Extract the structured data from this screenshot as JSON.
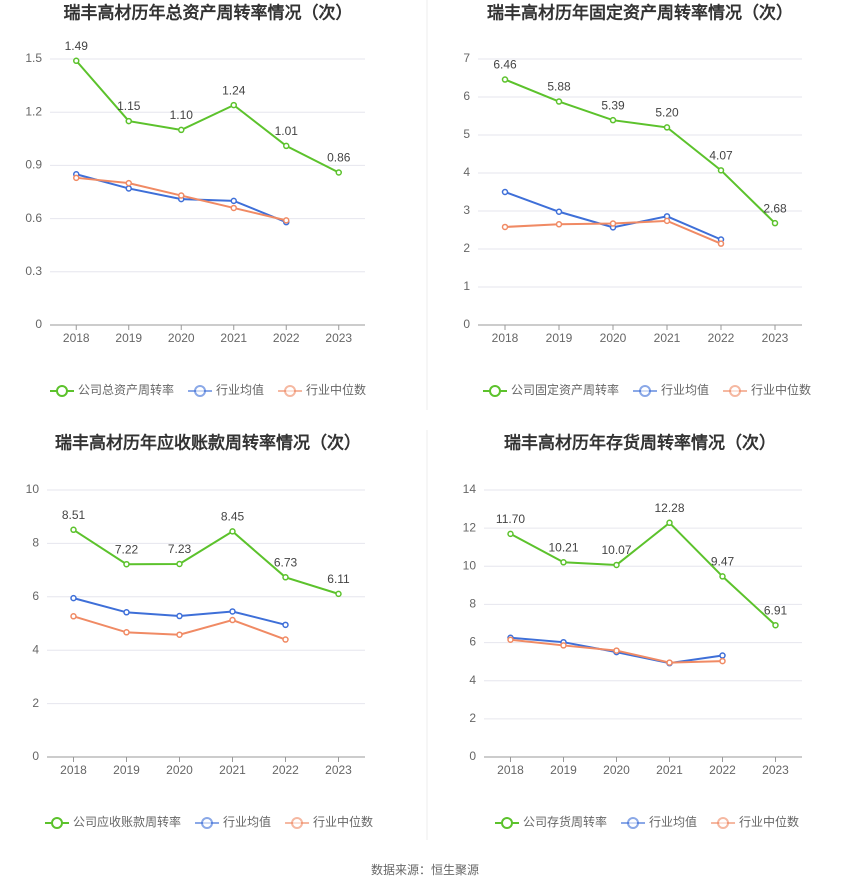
{
  "chart_data": [
    {
      "type": "line",
      "title": "瑞丰高材历年总资产周转率情况（次）",
      "categories": [
        "2018",
        "2019",
        "2020",
        "2021",
        "2022",
        "2023"
      ],
      "ylim": [
        0,
        1.5
      ],
      "yticks": [
        0,
        0.3,
        0.6,
        0.9,
        1.2,
        1.5
      ],
      "grid": true,
      "series": [
        {
          "name": "公司总资产周转率",
          "color": "#5cc22c",
          "values": [
            1.49,
            1.15,
            1.1,
            1.24,
            1.01,
            0.86
          ],
          "value_labels": [
            "1.49",
            "1.15",
            "1.10",
            "1.24",
            "1.01",
            "0.86"
          ]
        },
        {
          "name": "行业均值",
          "color": "#3e6fd8",
          "values": [
            0.85,
            0.77,
            0.71,
            0.7,
            0.58,
            null
          ]
        },
        {
          "name": "行业中位数",
          "color": "#f08a64",
          "values": [
            0.83,
            0.8,
            0.73,
            0.66,
            0.59,
            null
          ]
        }
      ]
    },
    {
      "type": "line",
      "title": "瑞丰高材历年固定资产周转率情况（次）",
      "categories": [
        "2018",
        "2019",
        "2020",
        "2021",
        "2022",
        "2023"
      ],
      "ylim": [
        0,
        7
      ],
      "yticks": [
        0,
        1,
        2,
        3,
        4,
        5,
        6,
        7
      ],
      "grid": true,
      "series": [
        {
          "name": "公司固定资产周转率",
          "color": "#5cc22c",
          "values": [
            6.46,
            5.88,
            5.39,
            5.2,
            4.07,
            2.68
          ],
          "value_labels": [
            "6.46",
            "5.88",
            "5.39",
            "5.20",
            "4.07",
            "2.68"
          ]
        },
        {
          "name": "行业均值",
          "color": "#3e6fd8",
          "values": [
            3.5,
            2.98,
            2.57,
            2.86,
            2.25,
            null
          ]
        },
        {
          "name": "行业中位数",
          "color": "#f08a64",
          "values": [
            2.58,
            2.65,
            2.67,
            2.74,
            2.14,
            null
          ]
        }
      ]
    },
    {
      "type": "line",
      "title": "瑞丰高材历年应收账款周转率情况（次）",
      "categories": [
        "2018",
        "2019",
        "2020",
        "2021",
        "2022",
        "2023"
      ],
      "ylim": [
        0,
        10
      ],
      "yticks": [
        0,
        2,
        4,
        6,
        8,
        10
      ],
      "grid": true,
      "series": [
        {
          "name": "公司应收账款周转率",
          "color": "#5cc22c",
          "values": [
            8.51,
            7.22,
            7.23,
            8.45,
            6.73,
            6.11
          ]
        },
        {
          "name": "行业均值",
          "color": "#3e6fd8",
          "values": [
            5.95,
            5.42,
            5.28,
            5.45,
            4.95,
            null
          ]
        },
        {
          "name": "行业中位数",
          "color": "#f08a64",
          "values": [
            5.27,
            4.67,
            4.58,
            5.13,
            4.4,
            null
          ]
        }
      ]
    },
    {
      "type": "line",
      "title": "瑞丰高材历年存货周转率情况（次）",
      "categories": [
        "2018",
        "2019",
        "2020",
        "2021",
        "2022",
        "2023"
      ],
      "ylim": [
        0,
        14
      ],
      "yticks": [
        0,
        2,
        4,
        6,
        8,
        10,
        12,
        14
      ],
      "grid": true,
      "series": [
        {
          "name": "公司存货周转率",
          "color": "#5cc22c",
          "values": [
            11.7,
            10.21,
            10.07,
            12.28,
            9.47,
            6.91
          ],
          "value_labels": [
            "11.70",
            "10.21",
            "10.07",
            "12.28",
            "9.47",
            "6.91"
          ]
        },
        {
          "name": "行业均值",
          "color": "#3e6fd8",
          "values": [
            6.25,
            6.02,
            5.5,
            4.92,
            5.32,
            null
          ]
        },
        {
          "name": "行业中位数",
          "color": "#f08a64",
          "values": [
            6.15,
            5.85,
            5.58,
            4.95,
            5.03,
            null
          ]
        }
      ]
    }
  ],
  "source": "数据来源：恒生聚源"
}
